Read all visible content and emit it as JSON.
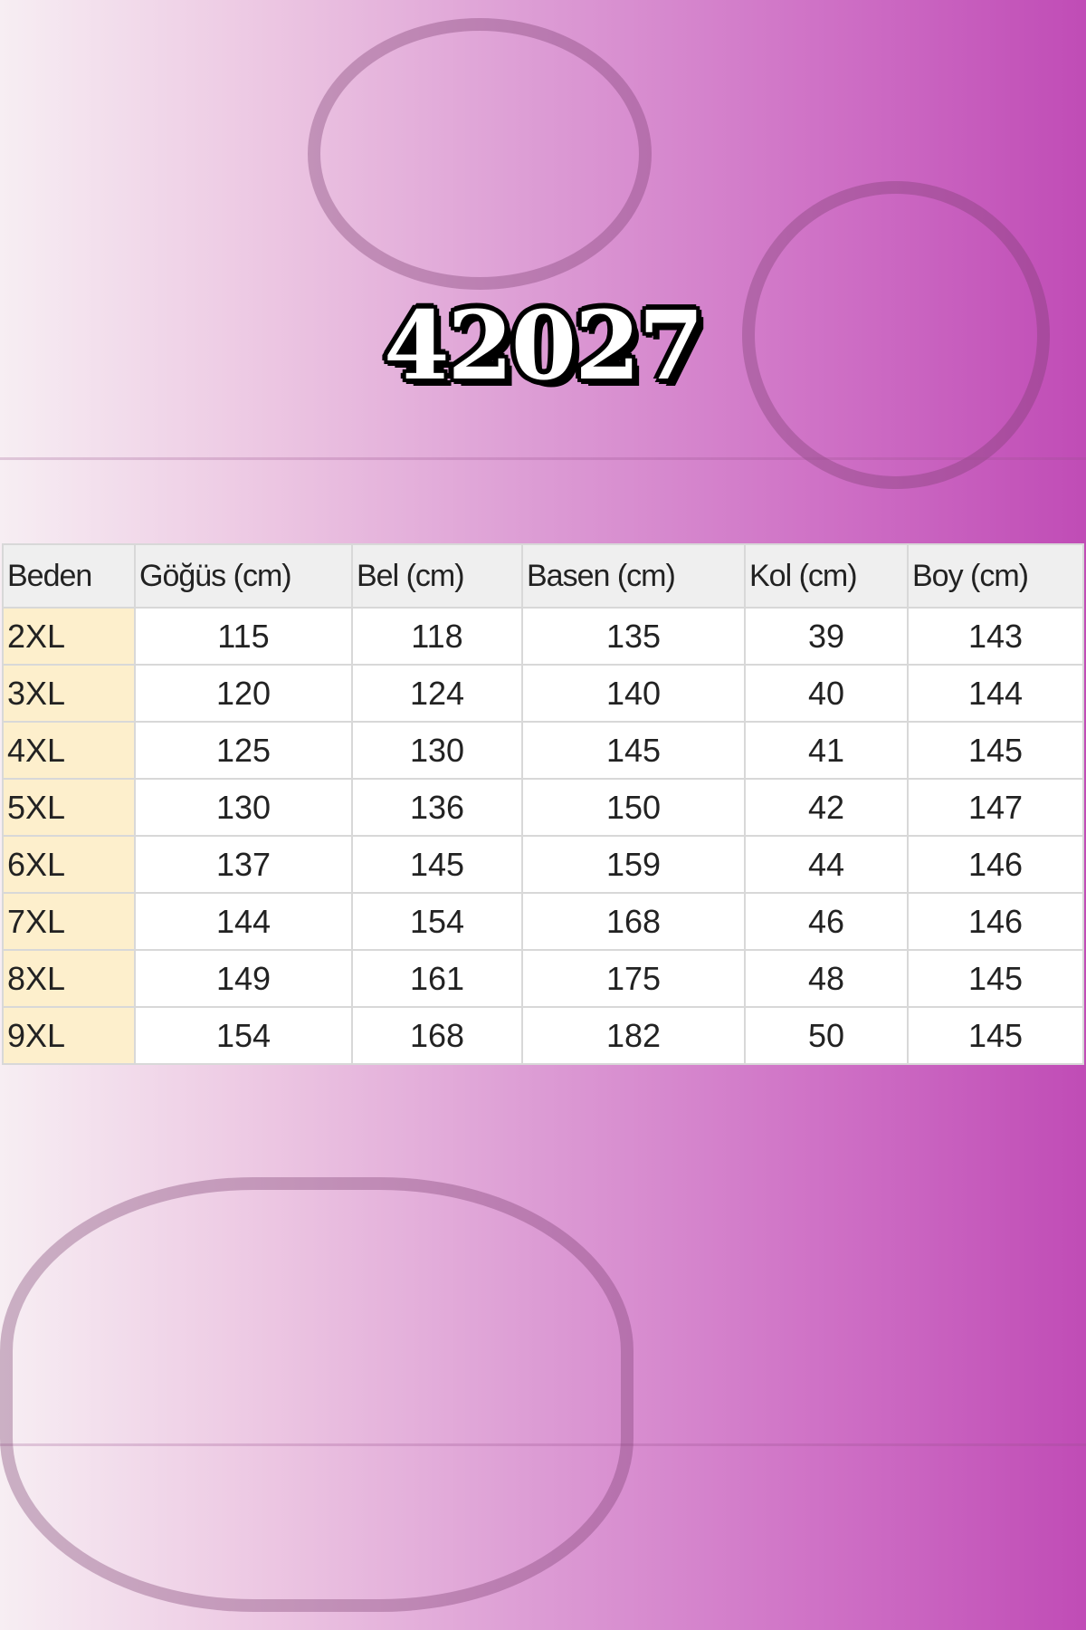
{
  "title": "42027",
  "table": {
    "headers": [
      "Beden",
      "Göğüs (cm)",
      "Bel  (cm)",
      "Basen  (cm)",
      "Kol (cm)",
      "Boy (cm)"
    ],
    "rows": [
      [
        "2XL",
        "115",
        "118",
        "135",
        "39",
        "143"
      ],
      [
        "3XL",
        "120",
        "124",
        "140",
        "40",
        "144"
      ],
      [
        "4XL",
        "125",
        "130",
        "145",
        "41",
        "145"
      ],
      [
        "5XL",
        "130",
        "136",
        "150",
        "42",
        "147"
      ],
      [
        "6XL",
        "137",
        "145",
        "159",
        "44",
        "146"
      ],
      [
        "7XL",
        "144",
        "154",
        "168",
        "46",
        "146"
      ],
      [
        "8XL",
        "149",
        "161",
        "175",
        "48",
        "145"
      ],
      [
        "9XL",
        "154",
        "168",
        "182",
        "50",
        "145"
      ]
    ]
  },
  "colors": {
    "accent": "#c04cb6",
    "size_cell": "#fdefcc"
  }
}
